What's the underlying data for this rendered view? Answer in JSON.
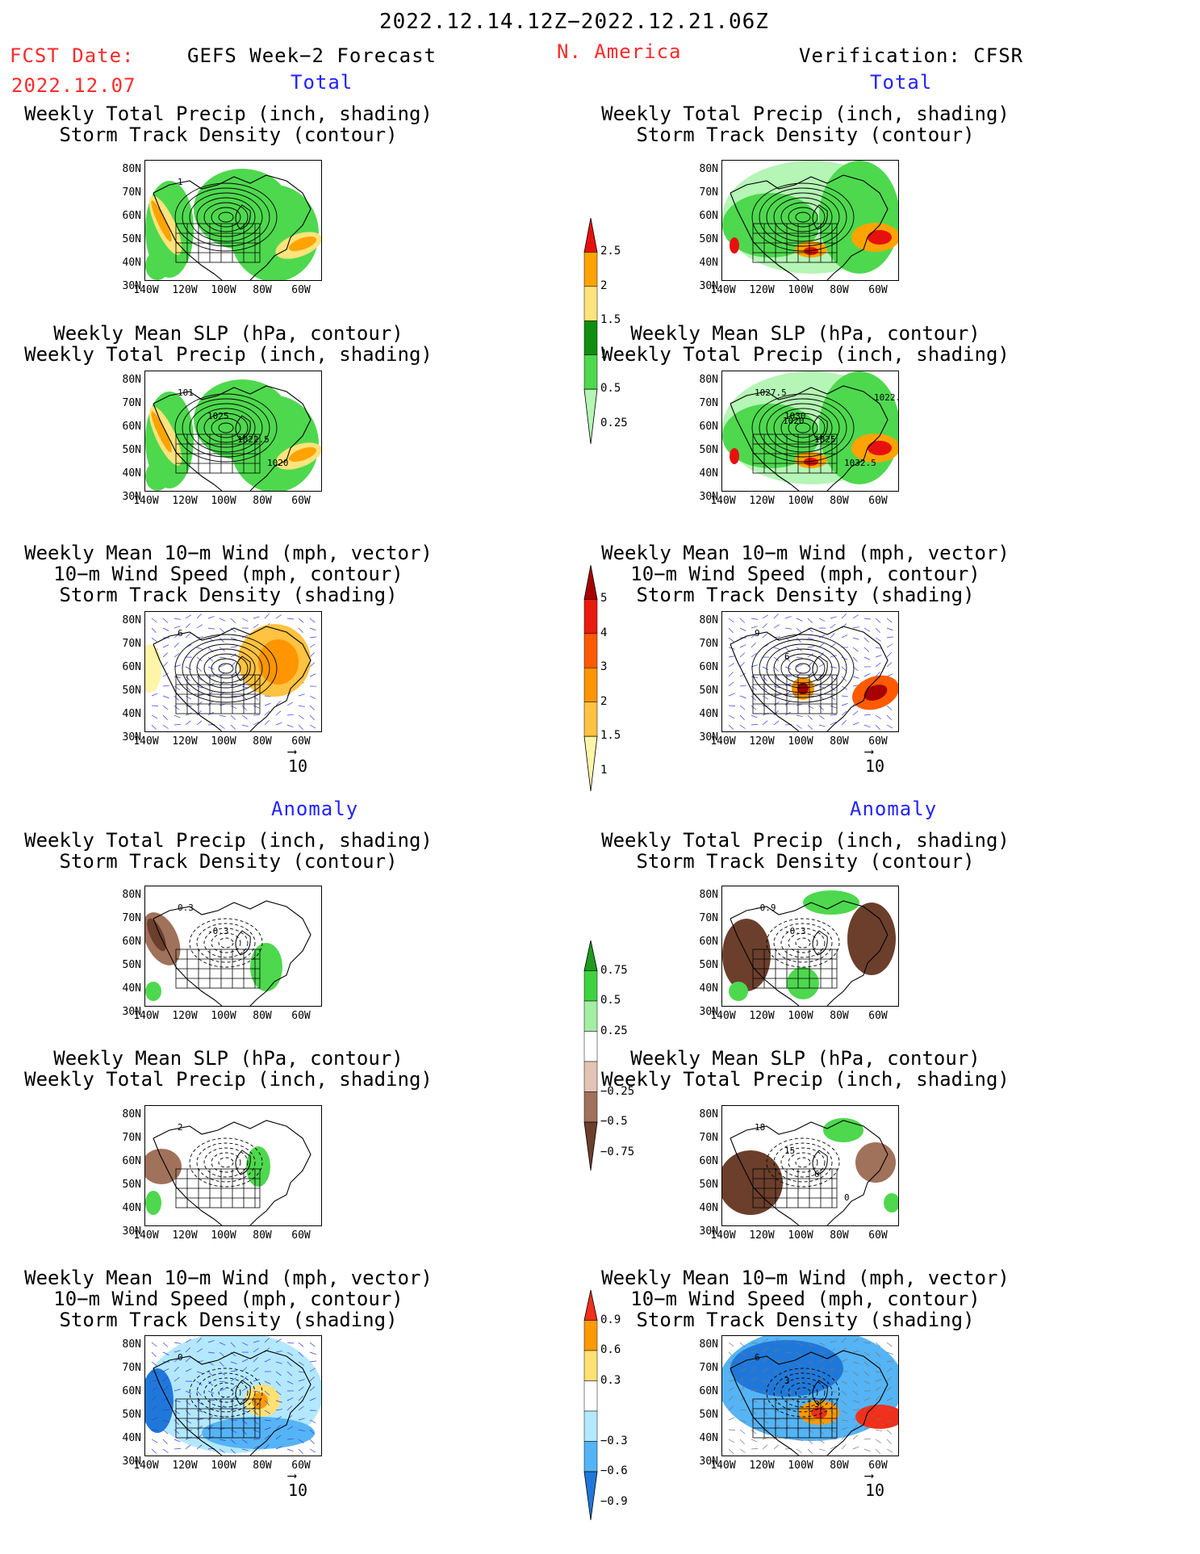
{
  "header": {
    "date_range": "2022.12.14.12Z−2022.12.21.06Z",
    "fcst_label": "FCST Date:",
    "fcst_date": "2022.12.07",
    "left_title": "GEFS Week−2 Forecast",
    "region": "N. America",
    "right_title": "Verification: CFSR"
  },
  "sections": {
    "total": "Total",
    "anomaly": "Anomaly"
  },
  "panel_titles": {
    "precip_track": [
      "Weekly Total Precip (inch, shading)",
      "Storm Track Density (contour)"
    ],
    "slp_precip": [
      "Weekly Mean SLP (hPa, contour)",
      "Weekly Total Precip (inch, shading)"
    ],
    "wind_track": [
      "Weekly Mean 10−m Wind (mph, vector)",
      "10−m Wind Speed (mph, contour)",
      "Storm Track Density (shading)"
    ]
  },
  "axes": {
    "lat": [
      "80N",
      "70N",
      "60N",
      "50N",
      "40N",
      "30N"
    ],
    "lon": [
      "140W",
      "120W",
      "100W",
      "80W",
      "60W"
    ]
  },
  "vector_ref": "10",
  "contour_labels": {
    "fc_precip_track": [
      "1"
    ],
    "fc_slp": [
      "101",
      "1025",
      "1022.5",
      "1020"
    ],
    "vf_slp": [
      "1027.5",
      "1030",
      "1025",
      "1032.5",
      "1022.5",
      "1020"
    ],
    "fc_wind": [
      "6"
    ],
    "vf_wind": [
      "9",
      "6"
    ],
    "fa_precip": [
      "0.3",
      "-0.3"
    ],
    "va_precip": [
      "-0.9",
      "-0.3"
    ],
    "fa_slp": [
      "2"
    ],
    "va_slp": [
      "18",
      "15",
      "6",
      "0"
    ],
    "fa_wind": [
      "0"
    ],
    "va_wind": [
      "6",
      "3",
      "3"
    ]
  },
  "colorbars": {
    "precip_total": {
      "labels": [
        "2.5",
        "2",
        "1.5",
        "1",
        "0.5",
        "0.25"
      ],
      "colors": [
        "#e8100e",
        "#ffa300",
        "#ffe37c",
        "#108e10",
        "#4ed84e",
        "#b5f5b5"
      ]
    },
    "track_total": {
      "labels": [
        "5",
        "4",
        "3",
        "2",
        "1.5",
        "1"
      ],
      "colors": [
        "#a80000",
        "#e81b0e",
        "#ff5a00",
        "#ff9500",
        "#ffc241",
        "#fff5a8"
      ]
    },
    "precip_anom": {
      "labels": [
        "0.75",
        "0.5",
        "0.25",
        "−0.25",
        "−0.5",
        "−0.75"
      ],
      "colors": [
        "#1e9b1e",
        "#3fd23f",
        "#a4eea4",
        "#ffffff",
        "#e4c3b5",
        "#a0715b",
        "#6b3f2c"
      ]
    },
    "wind_anom": {
      "labels": [
        "0.9",
        "0.6",
        "0.3",
        "−0.3",
        "−0.6",
        "−0.9"
      ],
      "colors": [
        "#f0301a",
        "#ff9a00",
        "#ffe173",
        "#ffffff",
        "#b3e8ff",
        "#55b4f5",
        "#1f78d9"
      ]
    }
  }
}
